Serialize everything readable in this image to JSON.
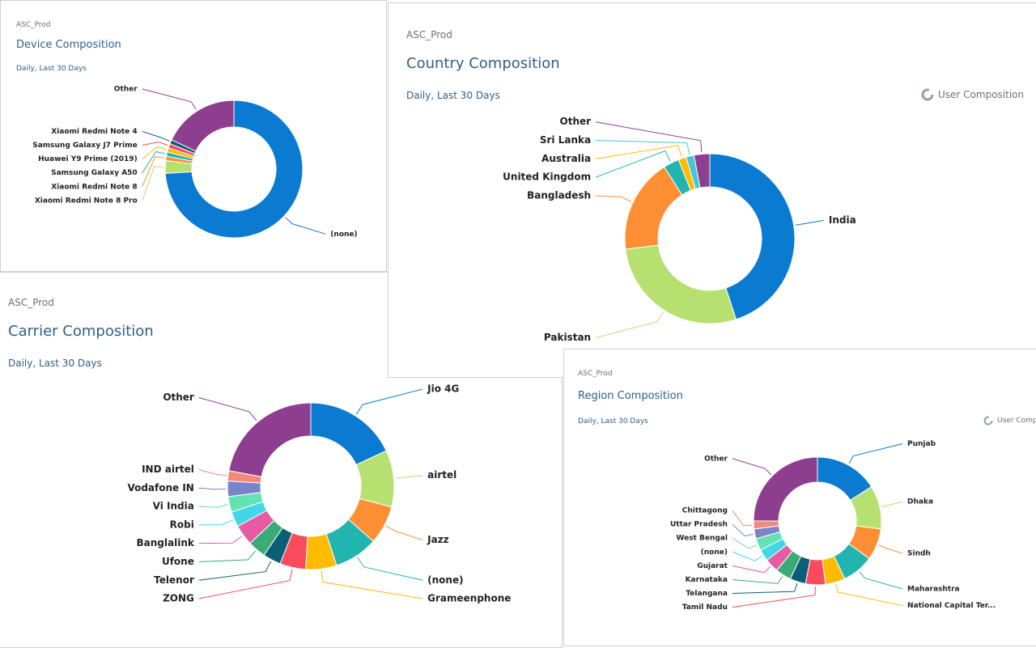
{
  "chart_data": [
    {
      "type": "donut",
      "header": "ASC_Prod",
      "title": "Device Composition",
      "subtitle": "Daily, Last 30 Days",
      "categories": [
        "(none)",
        "Xiaomi Redmi Note 8 Pro",
        "Xiaomi Redmi Note 8",
        "Samsung Galaxy A50",
        "Huawei Y9 Prime (2019)",
        "Samsung Galaxy J7 Prime",
        "Xiaomi Redmi Note 4",
        "Other"
      ],
      "values": [
        74,
        3,
        1,
        1,
        1,
        1,
        1,
        18
      ],
      "colors": [
        "#0b7ad1",
        "#b6e06f",
        "#ff8f34",
        "#22b5b0",
        "#ffbb00",
        "#f94b5b",
        "#0b5f75",
        "#8e3e8e"
      ]
    },
    {
      "type": "donut",
      "header": "ASC_Prod",
      "title": "Country Composition",
      "subtitle": "Daily, Last 30 Days",
      "action": "User Composition",
      "categories": [
        "India",
        "Pakistan",
        "Bangladesh",
        "United Kingdom",
        "Australia",
        "Sri Lanka",
        "Other"
      ],
      "values": [
        45,
        28,
        18,
        3,
        1.5,
        1.5,
        3
      ],
      "colors": [
        "#0b7ad1",
        "#b6e06f",
        "#ff8f34",
        "#22b5b0",
        "#ffbb00",
        "#43c6d8",
        "#8e3e8e"
      ]
    },
    {
      "type": "donut",
      "header": "ASC_Prod",
      "title": "Carrier Composition",
      "subtitle": "Daily, Last 30 Days",
      "categories": [
        "Jio 4G",
        "airtel",
        "Jazz",
        "(none)",
        "Grameenphone",
        "ZONG",
        "Telenor",
        "Ufone",
        "Banglalink",
        "Robi",
        "Vi India",
        "Vodafone IN",
        "IND airtel",
        "Other"
      ],
      "values": [
        18,
        11,
        7.5,
        8.5,
        6,
        5,
        3.5,
        3.5,
        4,
        3,
        3,
        3,
        2,
        22
      ],
      "colors": [
        "#0b7ad1",
        "#b6e06f",
        "#ff8f34",
        "#22b5b0",
        "#ffbb00",
        "#f94b5b",
        "#0b5f75",
        "#3aab76",
        "#e65ba4",
        "#43d6e8",
        "#62e3b1",
        "#7a84c9",
        "#f3897a",
        "#8e3e8e"
      ]
    },
    {
      "type": "donut",
      "header": "ASC_Prod",
      "title": "Region Composition",
      "subtitle": "Daily, Last 30 Days",
      "action": "User Composition",
      "categories": [
        "Punjab",
        "Dhaka",
        "Sindh",
        "Maharashtra",
        "National Capital Ter...",
        "Tamil Nadu",
        "Telangana",
        "Karnataka",
        "Gujarat",
        "(none)",
        "West Bengal",
        "Uttar Pradesh",
        "Chittagong",
        "Other"
      ],
      "values": [
        16,
        11,
        8,
        8,
        5,
        5,
        4,
        4,
        3.5,
        3,
        3,
        2.5,
        2,
        25
      ],
      "colors": [
        "#0b7ad1",
        "#b6e06f",
        "#ff8f34",
        "#22b5b0",
        "#ffbb00",
        "#f94b5b",
        "#0b5f75",
        "#3aab76",
        "#e65ba4",
        "#43d6e8",
        "#62e3b1",
        "#7a84c9",
        "#f3897a",
        "#8e3e8e"
      ]
    }
  ]
}
